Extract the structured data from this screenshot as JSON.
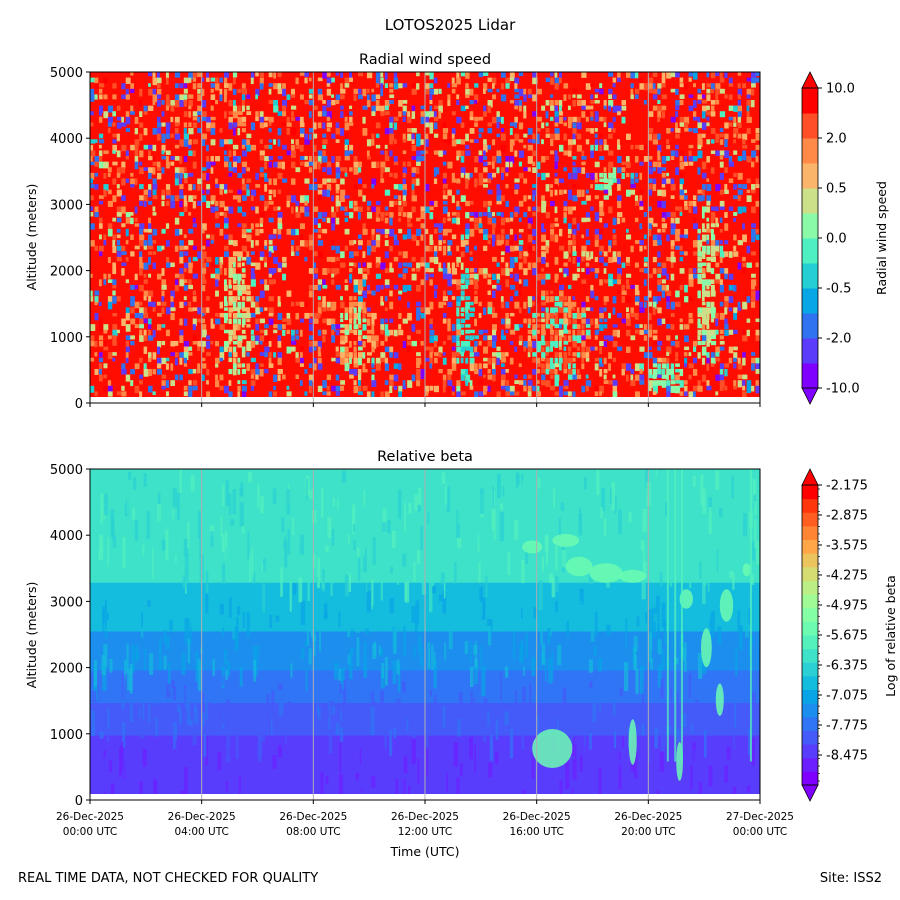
{
  "figure": {
    "suptitle": "LOTOS2025 Lidar",
    "footer_left": "REAL TIME DATA, NOT CHECKED FOR QUALITY",
    "footer_right": "Site: ISS2"
  },
  "chart_data": [
    {
      "type": "heatmap",
      "title": "Radial wind speed",
      "ylabel": "Altitude (meters)",
      "xlabel": "",
      "ylim": [
        0,
        5000
      ],
      "yticks": [
        0,
        1000,
        2000,
        3000,
        4000,
        5000
      ],
      "xlim_hours": [
        0,
        24
      ],
      "xtick_hours": [
        0,
        4,
        8,
        12,
        16,
        20,
        24
      ],
      "grid": "vertical",
      "colorbar": {
        "label": "Radial wind speed",
        "tick_labels": [
          "10.0",
          "2.0",
          "0.5",
          "0.0",
          "-0.5",
          "-2.0",
          "-10.0"
        ],
        "colors": [
          "#8000ff",
          "#5a3cfa",
          "#3073f0",
          "#07a6e4",
          "#23cfd2",
          "#4ef0c2",
          "#8bfaa8",
          "#cbe088",
          "#fbb56a",
          "#ff8a48",
          "#ff4f26",
          "#ff0000"
        ]
      }
    },
    {
      "type": "heatmap",
      "title": "Relative beta",
      "ylabel": "Altitude (meters)",
      "xlabel": "Time (UTC)",
      "ylim": [
        0,
        5000
      ],
      "yticks": [
        0,
        1000,
        2000,
        3000,
        4000,
        5000
      ],
      "xlim_hours": [
        0,
        24
      ],
      "xtick_hours": [
        0,
        4,
        8,
        12,
        16,
        20,
        24
      ],
      "xtick_labels": [
        [
          "26-Dec-2025",
          "00:00 UTC"
        ],
        [
          "26-Dec-2025",
          "04:00 UTC"
        ],
        [
          "26-Dec-2025",
          "08:00 UTC"
        ],
        [
          "26-Dec-2025",
          "12:00 UTC"
        ],
        [
          "26-Dec-2025",
          "16:00 UTC"
        ],
        [
          "26-Dec-2025",
          "20:00 UTC"
        ],
        [
          "27-Dec-2025",
          "00:00 UTC"
        ]
      ],
      "grid": "vertical",
      "colorbar": {
        "label": "Log of relative beta",
        "tick_labels": [
          "-2.175",
          "-2.875",
          "-3.575",
          "-4.275",
          "-4.975",
          "-5.675",
          "-6.375",
          "-7.075",
          "-7.775",
          "-8.475"
        ],
        "colors": [
          "#8000ff",
          "#6c1fff",
          "#583dfd",
          "#445af9",
          "#3075f5",
          "#1c8eee",
          "#08a4e6",
          "#14bcdd",
          "#2ad0d3",
          "#3ee2c8",
          "#54f1bd",
          "#6cfbb1",
          "#85ffa5",
          "#a0fb96",
          "#bbef85",
          "#d5dc72",
          "#ecc45e",
          "#ffa648",
          "#ff8434",
          "#ff5e20",
          "#ff360c",
          "#ff0000"
        ]
      }
    }
  ]
}
